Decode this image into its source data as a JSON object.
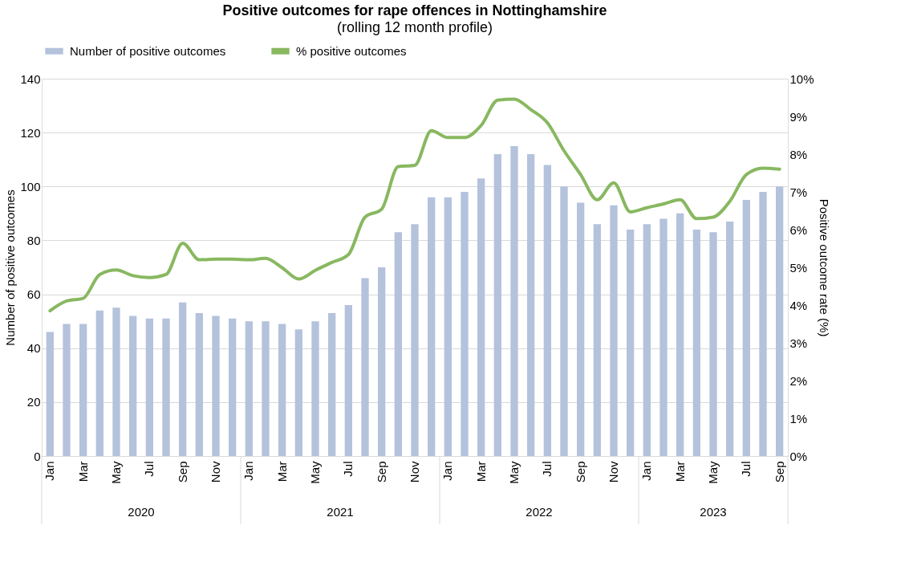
{
  "chart_data": {
    "type": "bar",
    "title": "Positive outcomes for rape offences in Nottinghamshire",
    "subtitle": "(rolling 12 month profile)",
    "categories": [
      "Jan",
      null,
      "Mar",
      null,
      "May",
      null,
      "Jul",
      null,
      "Sep",
      null,
      "Nov",
      null,
      "Jan",
      null,
      "Mar",
      null,
      "May",
      null,
      "Jul",
      null,
      "Sep",
      null,
      "Nov",
      null,
      "Jan",
      null,
      "Mar",
      null,
      "May",
      null,
      "Jul",
      null,
      "Sep",
      null,
      "Nov",
      null,
      "Jan",
      null,
      "Mar",
      null,
      "May",
      null,
      "Jul",
      null,
      "Sep"
    ],
    "series": [
      {
        "name": "Number of positive outcomes",
        "color": "#b4c2dc",
        "values": [
          46,
          49,
          49,
          54,
          55,
          52,
          51,
          51,
          57,
          53,
          52,
          51,
          50,
          50,
          49,
          47,
          50,
          53,
          56,
          66,
          70,
          83,
          86,
          96,
          96,
          98,
          103,
          112,
          115,
          112,
          108,
          100,
          94,
          86,
          93,
          84,
          86,
          88,
          90,
          84,
          83,
          87,
          95,
          98,
          100
        ]
      },
      {
        "name": "% positive outcomes",
        "type": "line",
        "axis": "y2",
        "color": "#88b860",
        "values": [
          3.85,
          4.11,
          4.18,
          4.81,
          4.93,
          4.78,
          4.73,
          4.81,
          5.64,
          5.2,
          5.22,
          5.22,
          5.2,
          5.24,
          4.99,
          4.69,
          4.92,
          5.13,
          5.34,
          6.33,
          6.54,
          7.67,
          7.7,
          8.62,
          8.44,
          8.44,
          8.76,
          9.43,
          9.46,
          9.18,
          8.83,
          8.09,
          7.46,
          6.79,
          7.24,
          6.47,
          6.58,
          6.68,
          6.79,
          6.29,
          6.33,
          6.75,
          7.46,
          7.63,
          7.6
        ]
      }
    ],
    "ylabel": "Number of positive outcomes",
    "y2label": "Positive outcome rate (%)",
    "ylim": [
      0,
      140
    ],
    "yticks": [
      0,
      20,
      40,
      60,
      80,
      100,
      120,
      140
    ],
    "y2lim": [
      0,
      10
    ],
    "y2ticks": [
      {
        "value": 0,
        "label": "0%"
      },
      {
        "value": 1,
        "label": "1%"
      },
      {
        "value": 2,
        "label": "2%"
      },
      {
        "value": 3,
        "label": "3%"
      },
      {
        "value": 4,
        "label": "4%"
      },
      {
        "value": 5,
        "label": "5%"
      },
      {
        "value": 6,
        "label": "6%"
      },
      {
        "value": 7,
        "label": "7%"
      },
      {
        "value": 8,
        "label": "8%"
      },
      {
        "value": 9,
        "label": "9%"
      },
      {
        "value": 10,
        "label": "10%"
      }
    ],
    "grid": "y",
    "legend": "top",
    "annotations": [
      "2020",
      "2021",
      "2022",
      "2023"
    ]
  }
}
